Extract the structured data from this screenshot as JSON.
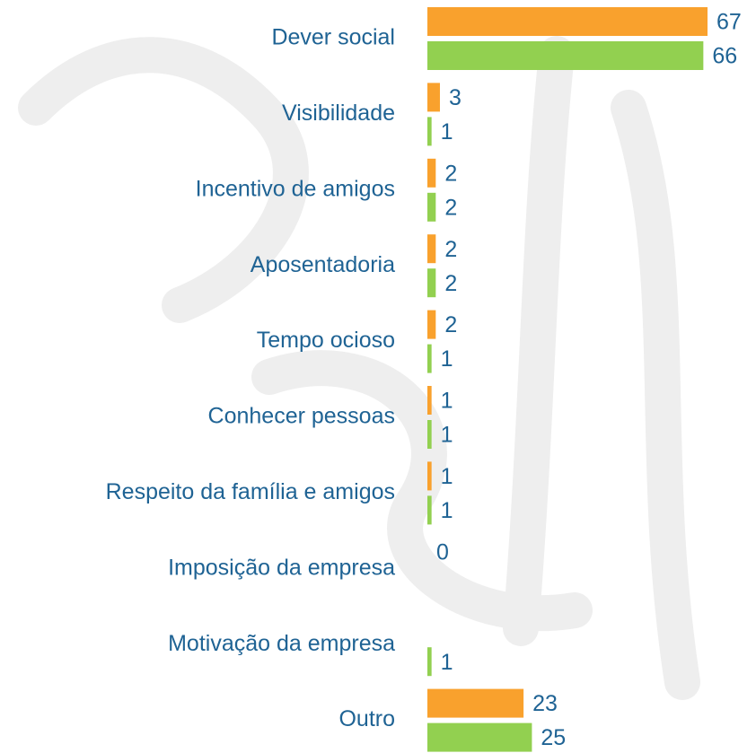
{
  "chart_data": {
    "type": "hbar",
    "categories": [
      "Dever social",
      "Visibilidade",
      "Incentivo de amigos",
      "Aposentadoria",
      "Tempo ocioso",
      "Conhecer pessoas",
      "Respeito da família e amigos",
      "Imposição da empresa",
      "Motivação da empresa",
      "Outro"
    ],
    "series": [
      {
        "color": "#f9a12d",
        "values": [
          67,
          3,
          2,
          2,
          2,
          1,
          1,
          0,
          null,
          23
        ]
      },
      {
        "color": "#92d050",
        "values": [
          66,
          1,
          2,
          2,
          1,
          1,
          1,
          null,
          1,
          25
        ]
      }
    ]
  }
}
